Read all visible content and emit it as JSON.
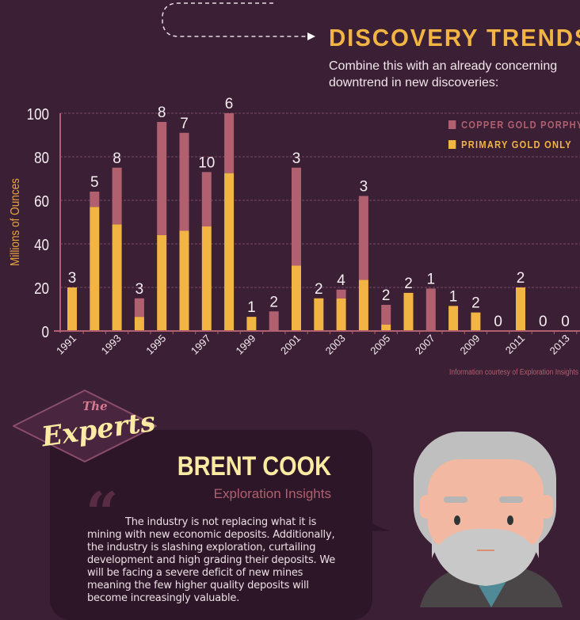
{
  "header": {
    "title": "DISCOVERY TRENDS",
    "subtitle": "Combine this with an already concerning downtrend in new discoveries:"
  },
  "colors": {
    "background": "#3b1f35",
    "copper": "#b0606f",
    "gold": "#f2b443",
    "cream": "#fbeaa2"
  },
  "chart_data": {
    "type": "bar",
    "stacked": true,
    "ylabel": "Millions of Ounces",
    "ylim": [
      0,
      100
    ],
    "yticks": [
      0,
      20,
      40,
      60,
      80,
      100
    ],
    "grid": true,
    "legend_position": "top-right",
    "categories": [
      "1991",
      "1992",
      "1993",
      "1994",
      "1995",
      "1996",
      "1997",
      "1998",
      "1999",
      "2000",
      "2001",
      "2002",
      "2003",
      "2004",
      "2005",
      "2006",
      "2007",
      "2008",
      "2009",
      "2010",
      "2011",
      "2012",
      "2013"
    ],
    "xtick_labels": [
      "1991",
      "1993",
      "1995",
      "1997",
      "1999",
      "2001",
      "2003",
      "2005",
      "2007",
      "2009",
      "2011",
      "2013"
    ],
    "series": [
      {
        "name": "PRIMARY GOLD ONLY",
        "color": "#f2b443",
        "values": [
          20,
          57,
          49,
          6.5,
          44,
          46,
          48,
          72.5,
          6.5,
          0,
          30,
          15,
          15,
          23.5,
          3,
          17.5,
          0,
          11.5,
          8.5,
          0,
          20,
          0,
          0
        ]
      },
      {
        "name": "COPPER GOLD PORPHYRY",
        "color": "#b0606f",
        "values": [
          0,
          7,
          26,
          8.5,
          52,
          45,
          25,
          27.5,
          0,
          9,
          45,
          0,
          4,
          38.5,
          9,
          0,
          19.5,
          0,
          0,
          0,
          0,
          0,
          0
        ]
      }
    ],
    "data_labels": [
      "3",
      "5",
      "8",
      "3",
      "8",
      "7",
      "10",
      "6",
      "1",
      "2",
      "3",
      "2",
      "4",
      "3",
      "2",
      "2",
      "1",
      "1",
      "2",
      "0",
      "2",
      "0",
      "0"
    ],
    "credit": "Information courtesy of Exploration Insights"
  },
  "experts": {
    "badge_small": "The",
    "badge_big": "Experts",
    "name": "BRENT COOK",
    "organization": "Exploration Insights",
    "quote": "The industry is not replacing what it is mining with new economic deposits. Additionally, the industry is slashing exploration, curtailing development and high grading their deposits. We will be facing a severe deficit of new mines meaning the few higher quality deposits will become increasingly valuable."
  }
}
